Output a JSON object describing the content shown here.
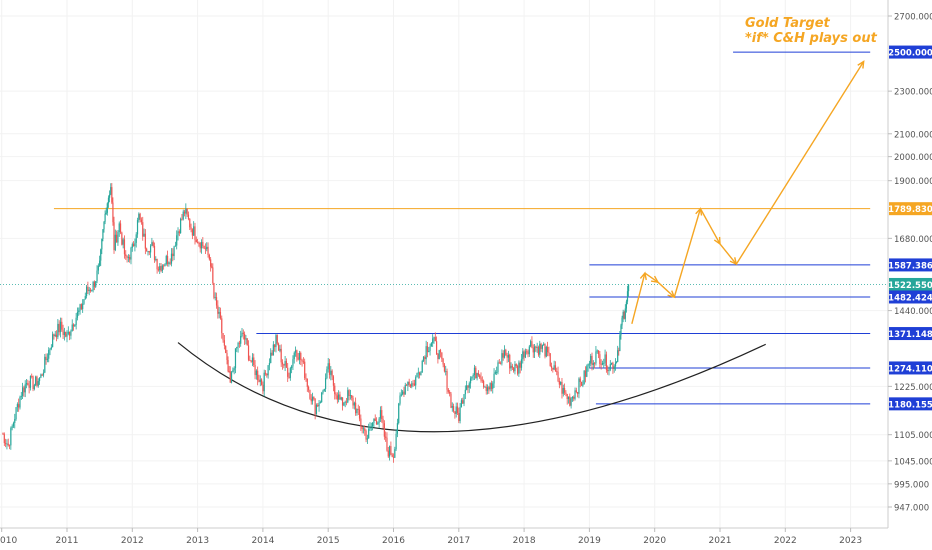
{
  "chart_data": {
    "type": "candlestick",
    "instrument": "Gold",
    "annotation": {
      "line1": "Gold Target",
      "line2": "*if* C&H plays out"
    },
    "x_ticks": [
      "010",
      "2011",
      "2012",
      "2013",
      "2014",
      "2015",
      "2016",
      "2017",
      "2018",
      "2019",
      "2020",
      "2021",
      "2022",
      "2023"
    ],
    "y_ticks": [
      {
        "label": "2700.000",
        "value": 2700
      },
      {
        "label": "2300.000",
        "value": 2300
      },
      {
        "label": "2100.000",
        "value": 2100
      },
      {
        "label": "2000.000",
        "value": 2000
      },
      {
        "label": "1900.000",
        "value": 1900
      },
      {
        "label": "1680.000",
        "value": 1680
      },
      {
        "label": "1440.000",
        "value": 1440
      },
      {
        "label": "1225.000",
        "value": 1225
      },
      {
        "label": "1105.000",
        "value": 1105
      },
      {
        "label": "1045.000",
        "value": 1045
      },
      {
        "label": "995.000",
        "value": 995
      },
      {
        "label": "947.000",
        "value": 947
      }
    ],
    "price_labels": [
      {
        "label": "2500.000",
        "value": 2500,
        "kind": "target"
      },
      {
        "label": "1789.830",
        "value": 1789.83,
        "kind": "resistance"
      },
      {
        "label": "1587.386",
        "value": 1587.386,
        "kind": "level"
      },
      {
        "label": "1522.550",
        "value": 1522.55,
        "kind": "current"
      },
      {
        "label": "1482.424",
        "value": 1482.424,
        "kind": "level"
      },
      {
        "label": "1371.148",
        "value": 1371.148,
        "kind": "level"
      },
      {
        "label": "1274.110",
        "value": 1274.11,
        "kind": "level"
      },
      {
        "label": "1180.155",
        "value": 1180.155,
        "kind": "level"
      }
    ],
    "horizontal_lines": [
      {
        "value": 1789.83,
        "from": 2010.8,
        "to": 2023.3,
        "color": "#f5a623"
      },
      {
        "value": 2500,
        "from": 2021.2,
        "to": 2023.3,
        "color": "#1f3fd6"
      },
      {
        "value": 1587.386,
        "from": 2019.0,
        "to": 2023.3,
        "color": "#1f3fd6"
      },
      {
        "value": 1482.424,
        "from": 2019.0,
        "to": 2023.3,
        "color": "#1f3fd6"
      },
      {
        "value": 1371.148,
        "from": 2013.9,
        "to": 2023.3,
        "color": "#1f3fd6"
      },
      {
        "value": 1274.11,
        "from": 2019.0,
        "to": 2023.3,
        "color": "#1f3fd6"
      },
      {
        "value": 1180.155,
        "from": 2019.1,
        "to": 2023.3,
        "color": "#1f3fd6"
      }
    ],
    "cup_curve": {
      "from": [
        2012.7,
        1345
      ],
      "bottom": [
        2016.6,
        1112
      ],
      "to": [
        2021.7,
        1340
      ]
    },
    "projection_path": [
      [
        2019.65,
        1400
      ],
      [
        2019.85,
        1560
      ],
      [
        2020.05,
        1530
      ],
      [
        2020.3,
        1482
      ],
      [
        2020.7,
        1790
      ],
      [
        2021.0,
        1660
      ],
      [
        2021.25,
        1590
      ],
      [
        2023.2,
        2450
      ]
    ],
    "price_series": [
      [
        2010.0,
        1110
      ],
      [
        2010.1,
        1080
      ],
      [
        2010.2,
        1150
      ],
      [
        2010.3,
        1210
      ],
      [
        2010.4,
        1240
      ],
      [
        2010.5,
        1230
      ],
      [
        2010.6,
        1250
      ],
      [
        2010.7,
        1310
      ],
      [
        2010.8,
        1370
      ],
      [
        2010.9,
        1390
      ],
      [
        2011.0,
        1360
      ],
      [
        2011.1,
        1410
      ],
      [
        2011.2,
        1440
      ],
      [
        2011.3,
        1500
      ],
      [
        2011.4,
        1520
      ],
      [
        2011.5,
        1580
      ],
      [
        2011.55,
        1700
      ],
      [
        2011.6,
        1800
      ],
      [
        2011.67,
        1880
      ],
      [
        2011.72,
        1650
      ],
      [
        2011.8,
        1730
      ],
      [
        2011.9,
        1600
      ],
      [
        2012.0,
        1640
      ],
      [
        2012.1,
        1760
      ],
      [
        2012.2,
        1660
      ],
      [
        2012.3,
        1650
      ],
      [
        2012.4,
        1580
      ],
      [
        2012.5,
        1600
      ],
      [
        2012.6,
        1620
      ],
      [
        2012.7,
        1710
      ],
      [
        2012.8,
        1780
      ],
      [
        2012.9,
        1720
      ],
      [
        2013.0,
        1680
      ],
      [
        2013.1,
        1650
      ],
      [
        2013.2,
        1600
      ],
      [
        2013.25,
        1480
      ],
      [
        2013.35,
        1400
      ],
      [
        2013.45,
        1280
      ],
      [
        2013.5,
        1230
      ],
      [
        2013.6,
        1330
      ],
      [
        2013.7,
        1370
      ],
      [
        2013.8,
        1300
      ],
      [
        2013.9,
        1260
      ],
      [
        2014.0,
        1230
      ],
      [
        2014.1,
        1300
      ],
      [
        2014.2,
        1350
      ],
      [
        2014.3,
        1290
      ],
      [
        2014.4,
        1260
      ],
      [
        2014.5,
        1330
      ],
      [
        2014.6,
        1290
      ],
      [
        2014.7,
        1220
      ],
      [
        2014.8,
        1170
      ],
      [
        2014.9,
        1200
      ],
      [
        2015.0,
        1270
      ],
      [
        2015.1,
        1220
      ],
      [
        2015.2,
        1180
      ],
      [
        2015.3,
        1200
      ],
      [
        2015.4,
        1180
      ],
      [
        2015.5,
        1130
      ],
      [
        2015.6,
        1100
      ],
      [
        2015.7,
        1140
      ],
      [
        2015.8,
        1150
      ],
      [
        2015.9,
        1070
      ],
      [
        2016.0,
        1060
      ],
      [
        2016.1,
        1190
      ],
      [
        2016.2,
        1240
      ],
      [
        2016.3,
        1230
      ],
      [
        2016.4,
        1270
      ],
      [
        2016.5,
        1330
      ],
      [
        2016.6,
        1350
      ],
      [
        2016.7,
        1310
      ],
      [
        2016.8,
        1250
      ],
      [
        2016.9,
        1170
      ],
      [
        2017.0,
        1150
      ],
      [
        2017.1,
        1230
      ],
      [
        2017.2,
        1250
      ],
      [
        2017.3,
        1270
      ],
      [
        2017.4,
        1230
      ],
      [
        2017.5,
        1220
      ],
      [
        2017.6,
        1280
      ],
      [
        2017.7,
        1320
      ],
      [
        2017.8,
        1280
      ],
      [
        2017.9,
        1270
      ],
      [
        2018.0,
        1320
      ],
      [
        2018.1,
        1340
      ],
      [
        2018.2,
        1330
      ],
      [
        2018.3,
        1330
      ],
      [
        2018.4,
        1290
      ],
      [
        2018.5,
        1250
      ],
      [
        2018.6,
        1210
      ],
      [
        2018.7,
        1190
      ],
      [
        2018.8,
        1220
      ],
      [
        2018.9,
        1240
      ],
      [
        2019.0,
        1290
      ],
      [
        2019.1,
        1310
      ],
      [
        2019.2,
        1300
      ],
      [
        2019.3,
        1280
      ],
      [
        2019.4,
        1290
      ],
      [
        2019.45,
        1340
      ],
      [
        2019.5,
        1410
      ],
      [
        2019.55,
        1430
      ],
      [
        2019.6,
        1522.55
      ]
    ]
  }
}
